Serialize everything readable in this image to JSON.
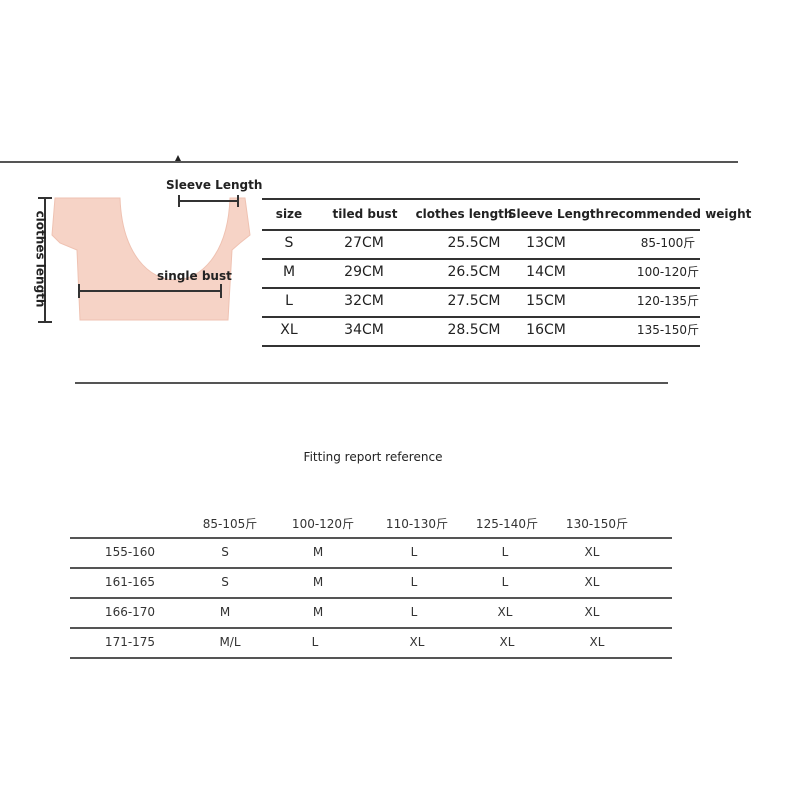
{
  "diagram": {
    "sleeve_label": "Sleeve Length",
    "bust_label": "single bust",
    "length_label": "clothes length",
    "garment_color": "#f6d3c6"
  },
  "size_table": {
    "headers": [
      "size",
      "tiled bust",
      "clothes length",
      "Sleeve Length",
      "recommended weight"
    ],
    "rows": [
      [
        "S",
        "27CM",
        "25.5CM",
        "13CM",
        "85-100斤"
      ],
      [
        "M",
        "29CM",
        "26.5CM",
        "14CM",
        "100-120斤"
      ],
      [
        "L",
        "32CM",
        "27.5CM",
        "15CM",
        "120-135斤"
      ],
      [
        "XL",
        "34CM",
        "28.5CM",
        "16CM",
        "135-150斤"
      ]
    ]
  },
  "fitting": {
    "title": "Fitting report reference",
    "weights": [
      "85-105斤",
      "100-120斤",
      "110-130斤",
      "125-140斤",
      "130-150斤"
    ],
    "rows": [
      {
        "height": "155-160",
        "sizes": [
          "S",
          "M",
          "L",
          "L",
          "XL"
        ]
      },
      {
        "height": "161-165",
        "sizes": [
          "S",
          "M",
          "L",
          "L",
          "XL"
        ]
      },
      {
        "height": "166-170",
        "sizes": [
          "M",
          "M",
          "L",
          "XL",
          "XL"
        ]
      },
      {
        "height": "171-175",
        "sizes": [
          "M/L",
          "L",
          "XL",
          "XL",
          "XL"
        ]
      }
    ]
  }
}
